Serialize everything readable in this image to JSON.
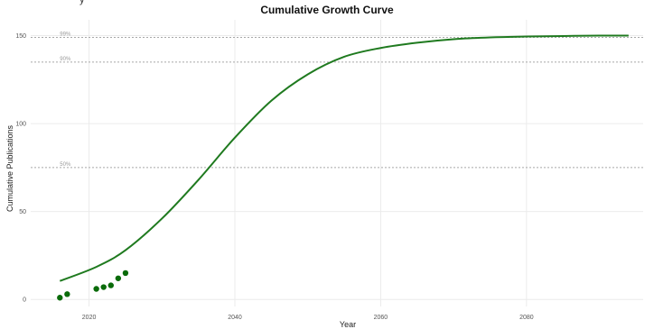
{
  "title": "Cumulative Growth Curve",
  "top_fragment": "y",
  "chart_data": {
    "type": "line",
    "title": "Cumulative Growth Curve",
    "xlabel": "Year",
    "ylabel": "Cumulative Publications",
    "xlim": [
      2012,
      2096
    ],
    "ylim": [
      -4,
      159
    ],
    "x_ticks": [
      2020,
      2040,
      2060,
      2080
    ],
    "x_tick_labels": [
      "2020",
      "2040",
      "2060",
      "2080"
    ],
    "y_ticks": [
      0,
      50,
      100,
      150
    ],
    "y_tick_labels": [
      "0",
      "50",
      "100",
      "150"
    ],
    "grid": true,
    "reference_lines": [
      {
        "label": "99%",
        "y": 149
      },
      {
        "label": "90%",
        "y": 135
      },
      {
        "label": "50%",
        "y": 75
      }
    ],
    "observed_points": {
      "x": [
        2016,
        2017,
        2021,
        2022,
        2023,
        2024,
        2025
      ],
      "y": [
        1,
        3,
        6,
        7,
        8,
        12,
        15
      ],
      "color": "#0a6b0a"
    },
    "fitted_curve": {
      "x": [
        2016,
        2021,
        2025,
        2030,
        2035,
        2040,
        2045,
        2050,
        2055,
        2060,
        2065,
        2070,
        2075,
        2080,
        2085,
        2090,
        2094
      ],
      "y": [
        10.5,
        18.5,
        28,
        46,
        68,
        92,
        113,
        128,
        138,
        143,
        146,
        148,
        149,
        149.5,
        149.8,
        150,
        150
      ],
      "color": "#1f7a1f"
    }
  }
}
